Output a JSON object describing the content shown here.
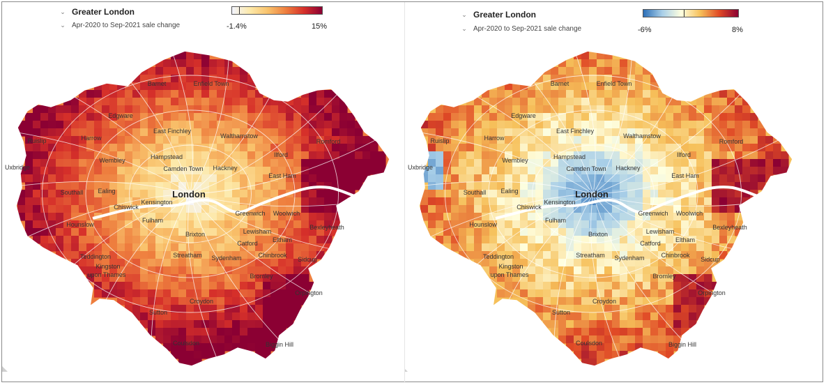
{
  "colors": {
    "warm_scale": [
      "#f3f5ff",
      "#fde9a9",
      "#f9c26c",
      "#ee7e3e",
      "#d6302a",
      "#8b0033"
    ],
    "diverging_scale": [
      "#2c6fb7",
      "#a9cfe8",
      "#ffffdf",
      "#f6c05a",
      "#e04a26",
      "#8b0033"
    ],
    "river": "#ffffff",
    "road": "#ffffff",
    "frame": "#8a8a8a"
  },
  "left_panel": {
    "region": "Greater London",
    "metric": "Apr-2020 to Sep-2021 sale change",
    "legend": {
      "min_label": "-1.4%",
      "max_label": "15%",
      "zero_fraction": 0.08
    },
    "places": [
      {
        "name": "Barnet"
      },
      {
        "name": "Enfield Town"
      },
      {
        "name": "Edgware"
      },
      {
        "name": "East Finchley"
      },
      {
        "name": "Walthamstow"
      },
      {
        "name": "Ruislip"
      },
      {
        "name": "Harrow"
      },
      {
        "name": "Wembley"
      },
      {
        "name": "Hampstead"
      },
      {
        "name": "Camden Town"
      },
      {
        "name": "Hackney"
      },
      {
        "name": "Ilford"
      },
      {
        "name": "Romford"
      },
      {
        "name": "Uxbridge"
      },
      {
        "name": "Southall"
      },
      {
        "name": "Ealing"
      },
      {
        "name": "East Ham"
      },
      {
        "name": "London"
      },
      {
        "name": "Kensington"
      },
      {
        "name": "Chiswick"
      },
      {
        "name": "Fulham"
      },
      {
        "name": "Greenwich"
      },
      {
        "name": "Woolwich"
      },
      {
        "name": "Hounslow"
      },
      {
        "name": "Brixton"
      },
      {
        "name": "Lewisham"
      },
      {
        "name": "Bexleyheath"
      },
      {
        "name": "Catford"
      },
      {
        "name": "Eltham"
      },
      {
        "name": "Teddington"
      },
      {
        "name": "Streatham"
      },
      {
        "name": "Sydenham"
      },
      {
        "name": "Chinbrook"
      },
      {
        "name": "Sidcup"
      },
      {
        "name": "Kingston"
      },
      {
        "name": "upon Thames"
      },
      {
        "name": "Bromley"
      },
      {
        "name": "Croydon"
      },
      {
        "name": "Orpington"
      },
      {
        "name": "Sutton"
      },
      {
        "name": "Coulsdon"
      },
      {
        "name": "Biggin Hill"
      }
    ]
  },
  "right_panel": {
    "region": "Greater London",
    "metric": "Apr-2020 to Sep-2021 sale change",
    "legend": {
      "min_label": "-6%",
      "max_label": "8%",
      "zero_fraction": 0.43
    },
    "places": [
      {
        "name": "Barnet"
      },
      {
        "name": "Enfield Town"
      },
      {
        "name": "Edgware"
      },
      {
        "name": "East Finchley"
      },
      {
        "name": "Walthamstow"
      },
      {
        "name": "Ruislip"
      },
      {
        "name": "Harrow"
      },
      {
        "name": "Romford"
      },
      {
        "name": "Hampstead"
      },
      {
        "name": "Wembley"
      },
      {
        "name": "Ilford"
      },
      {
        "name": "Camden Town"
      },
      {
        "name": "Hackney"
      },
      {
        "name": "Uxbridge"
      },
      {
        "name": "East Ham"
      },
      {
        "name": "Southall"
      },
      {
        "name": "Ealing"
      },
      {
        "name": "London"
      },
      {
        "name": "Kensington"
      },
      {
        "name": "Chiswick"
      },
      {
        "name": "Greenwich"
      },
      {
        "name": "Woolwich"
      },
      {
        "name": "Hounslow"
      },
      {
        "name": "Fulham"
      },
      {
        "name": "Bexleyheath"
      },
      {
        "name": "Lewisham"
      },
      {
        "name": "Brixton"
      },
      {
        "name": "Eltham"
      },
      {
        "name": "Catford"
      },
      {
        "name": "Teddington"
      },
      {
        "name": "Chinbrook"
      },
      {
        "name": "Streatham"
      },
      {
        "name": "Sydenham"
      },
      {
        "name": "Sidcup"
      },
      {
        "name": "Kingston"
      },
      {
        "name": "upon Thames"
      },
      {
        "name": "Bromley"
      },
      {
        "name": "Orpington"
      },
      {
        "name": "Croydon"
      },
      {
        "name": "Sutton"
      },
      {
        "name": "Biggin Hill"
      },
      {
        "name": "Coulsdon"
      }
    ]
  }
}
